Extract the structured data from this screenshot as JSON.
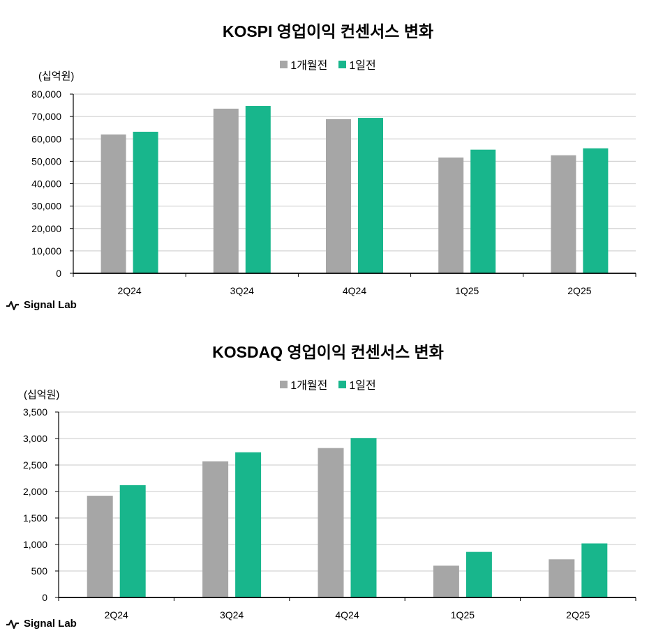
{
  "brand": {
    "name": "Signal Lab",
    "icon": "pulse-icon"
  },
  "chart_data": [
    {
      "type": "bar",
      "title": "KOSPI 영업이익 컨센서스 변화",
      "unit_label": "(십억원)",
      "categories": [
        "2Q24",
        "3Q24",
        "4Q24",
        "1Q25",
        "2Q25"
      ],
      "series": [
        {
          "name": "1개월전",
          "color": "#a6a6a6",
          "values": [
            62000,
            73500,
            68800,
            51700,
            52700
          ]
        },
        {
          "name": "1일전",
          "color": "#18b68c",
          "values": [
            63200,
            74700,
            69400,
            55200,
            55800
          ]
        }
      ],
      "ylim": [
        0,
        80000
      ],
      "yticks": [
        "0",
        "10,000",
        "20,000",
        "30,000",
        "40,000",
        "50,000",
        "60,000",
        "70,000",
        "80,000"
      ],
      "grid": true,
      "legend_position": "top-center"
    },
    {
      "type": "bar",
      "title": "KOSDAQ 영업이익 컨센서스 변화",
      "unit_label": "(십억원)",
      "categories": [
        "2Q24",
        "3Q24",
        "4Q24",
        "1Q25",
        "2Q25"
      ],
      "series": [
        {
          "name": "1개월전",
          "color": "#a6a6a6",
          "values": [
            1920,
            2570,
            2820,
            600,
            720
          ]
        },
        {
          "name": "1일전",
          "color": "#18b68c",
          "values": [
            2120,
            2740,
            3010,
            860,
            1020
          ]
        }
      ],
      "ylim": [
        0,
        3500
      ],
      "yticks": [
        "0",
        "500",
        "1,000",
        "1,500",
        "2,000",
        "2,500",
        "3,000",
        "3,500"
      ],
      "grid": true,
      "legend_position": "top-center"
    }
  ]
}
